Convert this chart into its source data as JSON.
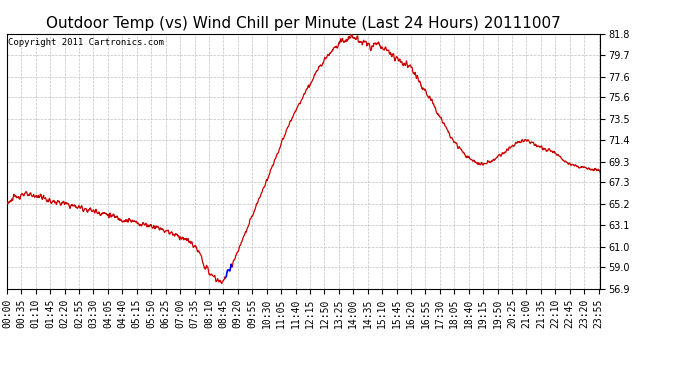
{
  "title": "Outdoor Temp (vs) Wind Chill per Minute (Last 24 Hours) 20111007",
  "copyright": "Copyright 2011 Cartronics.com",
  "ylim": [
    56.9,
    81.8
  ],
  "yticks": [
    81.8,
    79.7,
    77.6,
    75.6,
    73.5,
    71.4,
    69.3,
    67.3,
    65.2,
    63.1,
    61.0,
    59.0,
    56.9
  ],
  "line_color": "#cc0000",
  "blue_dot_color": "#0000ff",
  "background_color": "#ffffff",
  "grid_color": "#bbbbbb",
  "title_fontsize": 11,
  "tick_fontsize": 7,
  "copyright_fontsize": 6.5
}
